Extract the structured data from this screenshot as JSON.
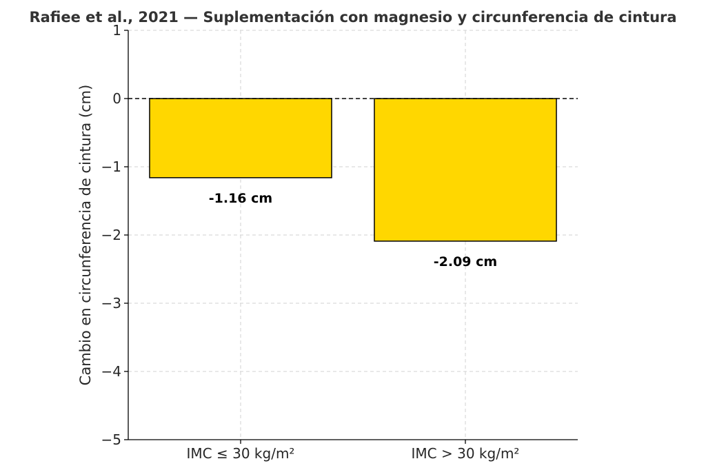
{
  "chart_data": {
    "type": "bar",
    "title": "Rafiee et al., 2021 — Suplementación con magnesio y circunferencia de cintura",
    "xlabel": "",
    "ylabel": "Cambio en circunferencia de cintura (cm)",
    "categories": [
      "IMC ≤ 30 kg/m²",
      "IMC > 30 kg/m²"
    ],
    "values": [
      -1.16,
      -2.09
    ],
    "data_labels": [
      "-1.16 cm",
      "-2.09 cm"
    ],
    "ylim": [
      -5,
      1
    ],
    "yticks": [
      1,
      0,
      -1,
      -2,
      -3,
      -4,
      -5
    ],
    "ytick_labels": [
      "1",
      "0",
      "−1",
      "−2",
      "−3",
      "−4",
      "−5"
    ],
    "bar_color": "#FFD700",
    "grid": true,
    "zero_line": "dashed"
  }
}
